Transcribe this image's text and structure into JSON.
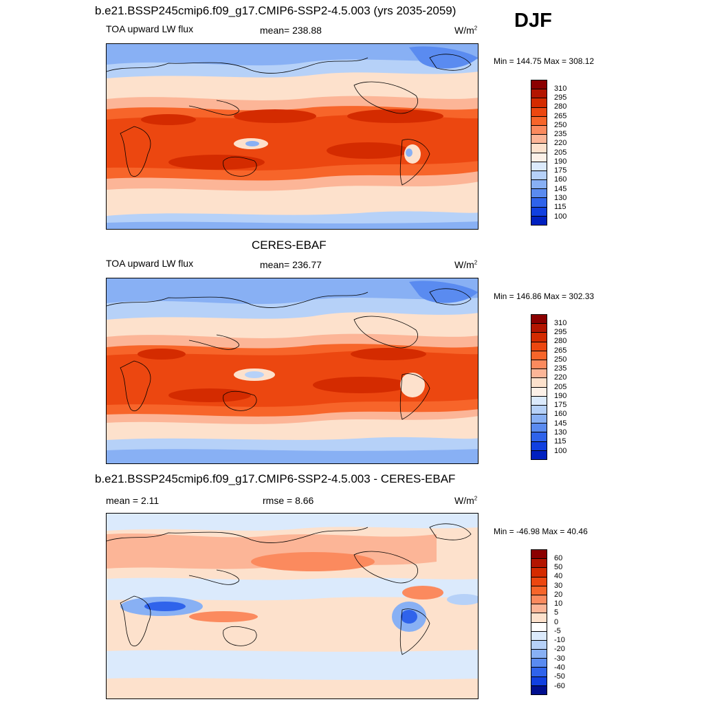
{
  "season": "DJF",
  "panels": [
    {
      "title": "b.e21.BSSP245cmip6.f09_g17.CMIP6-SSP2-4.5.003 (yrs 2035-2059)",
      "left_label": "TOA upward LW flux",
      "center_label": "mean= 238.88",
      "units": "W/m",
      "units_exp": "2",
      "minmax": "Min = 144.75 Max = 308.12",
      "colorbar_labels": [
        "310",
        "295",
        "280",
        "265",
        "250",
        "235",
        "220",
        "205",
        "190",
        "175",
        "160",
        "145",
        "130",
        "115",
        "100"
      ],
      "colors": [
        "#8b0000",
        "#b31500",
        "#d42b00",
        "#ec4710",
        "#f7652a",
        "#fb8a5e",
        "#fcb597",
        "#fde1cc",
        "#fdf1e8",
        "#dbeafc",
        "#b6d1f8",
        "#88b0f4",
        "#5a8bf0",
        "#2f63eb",
        "#1140e0",
        "#0020c0",
        "#000f8f",
        "#000070"
      ],
      "chart_data": {
        "type": "heatmap",
        "field": "TOA upward LW flux",
        "mean": 238.88,
        "min": 144.75,
        "max": 308.12,
        "units": "W/m2",
        "contour_levels": [
          100,
          115,
          130,
          145,
          160,
          175,
          190,
          205,
          220,
          235,
          250,
          265,
          280,
          295,
          310
        ]
      }
    },
    {
      "title": "CERES-EBAF",
      "left_label": "TOA upward LW flux",
      "center_label": "mean= 236.77",
      "units": "W/m",
      "units_exp": "2",
      "minmax": "Min = 146.86 Max = 302.33",
      "colorbar_labels": [
        "310",
        "295",
        "280",
        "265",
        "250",
        "235",
        "220",
        "205",
        "190",
        "175",
        "160",
        "145",
        "130",
        "115",
        "100"
      ],
      "chart_data": {
        "type": "heatmap",
        "field": "TOA upward LW flux",
        "mean": 236.77,
        "min": 146.86,
        "max": 302.33,
        "units": "W/m2",
        "contour_levels": [
          100,
          115,
          130,
          145,
          160,
          175,
          190,
          205,
          220,
          235,
          250,
          265,
          280,
          295,
          310
        ]
      }
    },
    {
      "title": "b.e21.BSSP245cmip6.f09_g17.CMIP6-SSP2-4.5.003 - CERES-EBAF",
      "left_label": "mean =   2.11",
      "center_label": "rmse =   8.66",
      "units": "W/m",
      "units_exp": "2",
      "minmax": "Min = -46.98 Max =  40.46",
      "colorbar_labels": [
        "60",
        "50",
        "40",
        "30",
        "20",
        "10",
        "5",
        "0",
        "-5",
        "-10",
        "-20",
        "-30",
        "-40",
        "-50",
        "-60"
      ],
      "colors": [
        "#8b0000",
        "#b31500",
        "#d42b00",
        "#ec4710",
        "#f7652a",
        "#fb8a5e",
        "#fcb597",
        "#fde1cc",
        "#ffffff",
        "#dbeafc",
        "#b6d1f8",
        "#88b0f4",
        "#5a8bf0",
        "#2f63eb",
        "#1140e0",
        "#000f8f"
      ],
      "chart_data": {
        "type": "heatmap",
        "field": "difference",
        "mean": 2.11,
        "rmse": 8.66,
        "min": -46.98,
        "max": 40.46,
        "units": "W/m2",
        "contour_levels": [
          -60,
          -50,
          -40,
          -30,
          -20,
          -10,
          -5,
          0,
          5,
          10,
          20,
          30,
          40,
          50,
          60
        ]
      }
    }
  ]
}
